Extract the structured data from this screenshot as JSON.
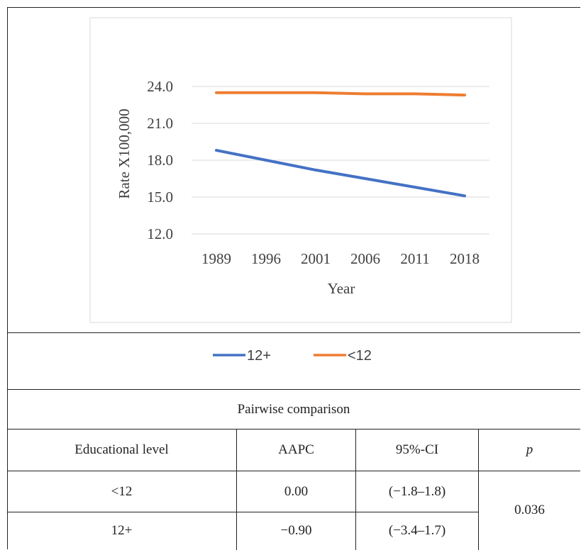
{
  "chart_data": {
    "type": "line",
    "categories": [
      "1989",
      "1996",
      "2001",
      "2006",
      "2011",
      "2018"
    ],
    "series": [
      {
        "name": "12+",
        "color": "#4472C4",
        "values": [
          18.8,
          18.0,
          17.2,
          16.5,
          15.8,
          15.1
        ]
      },
      {
        "name": "<12",
        "color": "#ED7D31",
        "values": [
          23.5,
          23.5,
          23.5,
          23.4,
          23.4,
          23.3
        ]
      }
    ],
    "xlabel": "Year",
    "ylabel": "Rate X100,000",
    "yticks": [
      "12.0",
      "15.0",
      "18.0",
      "21.0",
      "24.0"
    ],
    "ylim": [
      12,
      24
    ],
    "grid": true,
    "legend_position": "bottom"
  },
  "table": {
    "title": "Pairwise comparison",
    "headers": {
      "level": "Educational level",
      "aapc": "AAPC",
      "ci": "95%-CI",
      "p": "p"
    },
    "rows": [
      {
        "level": "<12",
        "aapc": "0.00",
        "ci": "(−1.8–1.8)"
      },
      {
        "level": "12+",
        "aapc": "−0.90",
        "ci": "(−3.4–1.7)"
      }
    ],
    "p_value": "0.036"
  }
}
